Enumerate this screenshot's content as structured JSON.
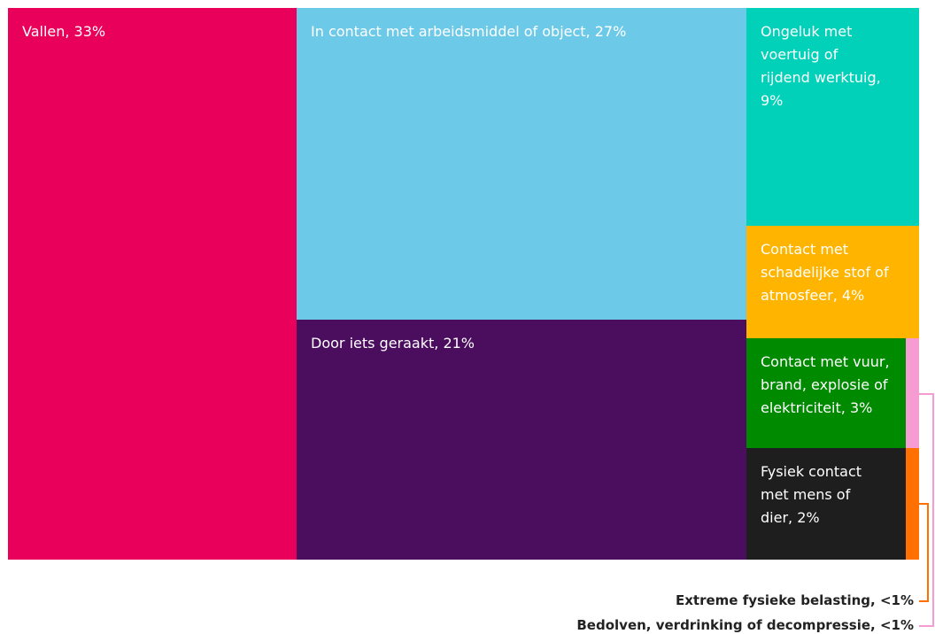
{
  "chart_data": {
    "type": "treemap",
    "series": [
      {
        "label": "Vallen, 33%",
        "value": 33,
        "color": "#e8005a"
      },
      {
        "label": "In contact met arbeidsmiddel of object, 27%",
        "value": 27,
        "color": "#6ccae8"
      },
      {
        "label": "Door iets geraakt, 21%",
        "value": 21,
        "color": "#4b0d5e"
      },
      {
        "label": "Ongeluk met voertuig of rijdend werktuig, 9%",
        "value": 9,
        "color": "#00d1b8"
      },
      {
        "label": "Contact met schadelijke stof of atmosfeer, 4%",
        "value": 4,
        "color": "#ffb400"
      },
      {
        "label": "Contact met vuur, brand, explosie of elektriciteit, 3%",
        "value": 3,
        "color": "#008a00"
      },
      {
        "label": "Fysiek contact met mens of dier, 2%",
        "value": 2,
        "color": "#1e1e1e"
      },
      {
        "label": "Extreme fysieke belasting, <1%",
        "value": 0.5,
        "color": "#ff7000"
      },
      {
        "label": "Bedolven, verdrinking of decompressie, <1%",
        "value": 0.5,
        "color": "#f79bd3"
      }
    ]
  }
}
